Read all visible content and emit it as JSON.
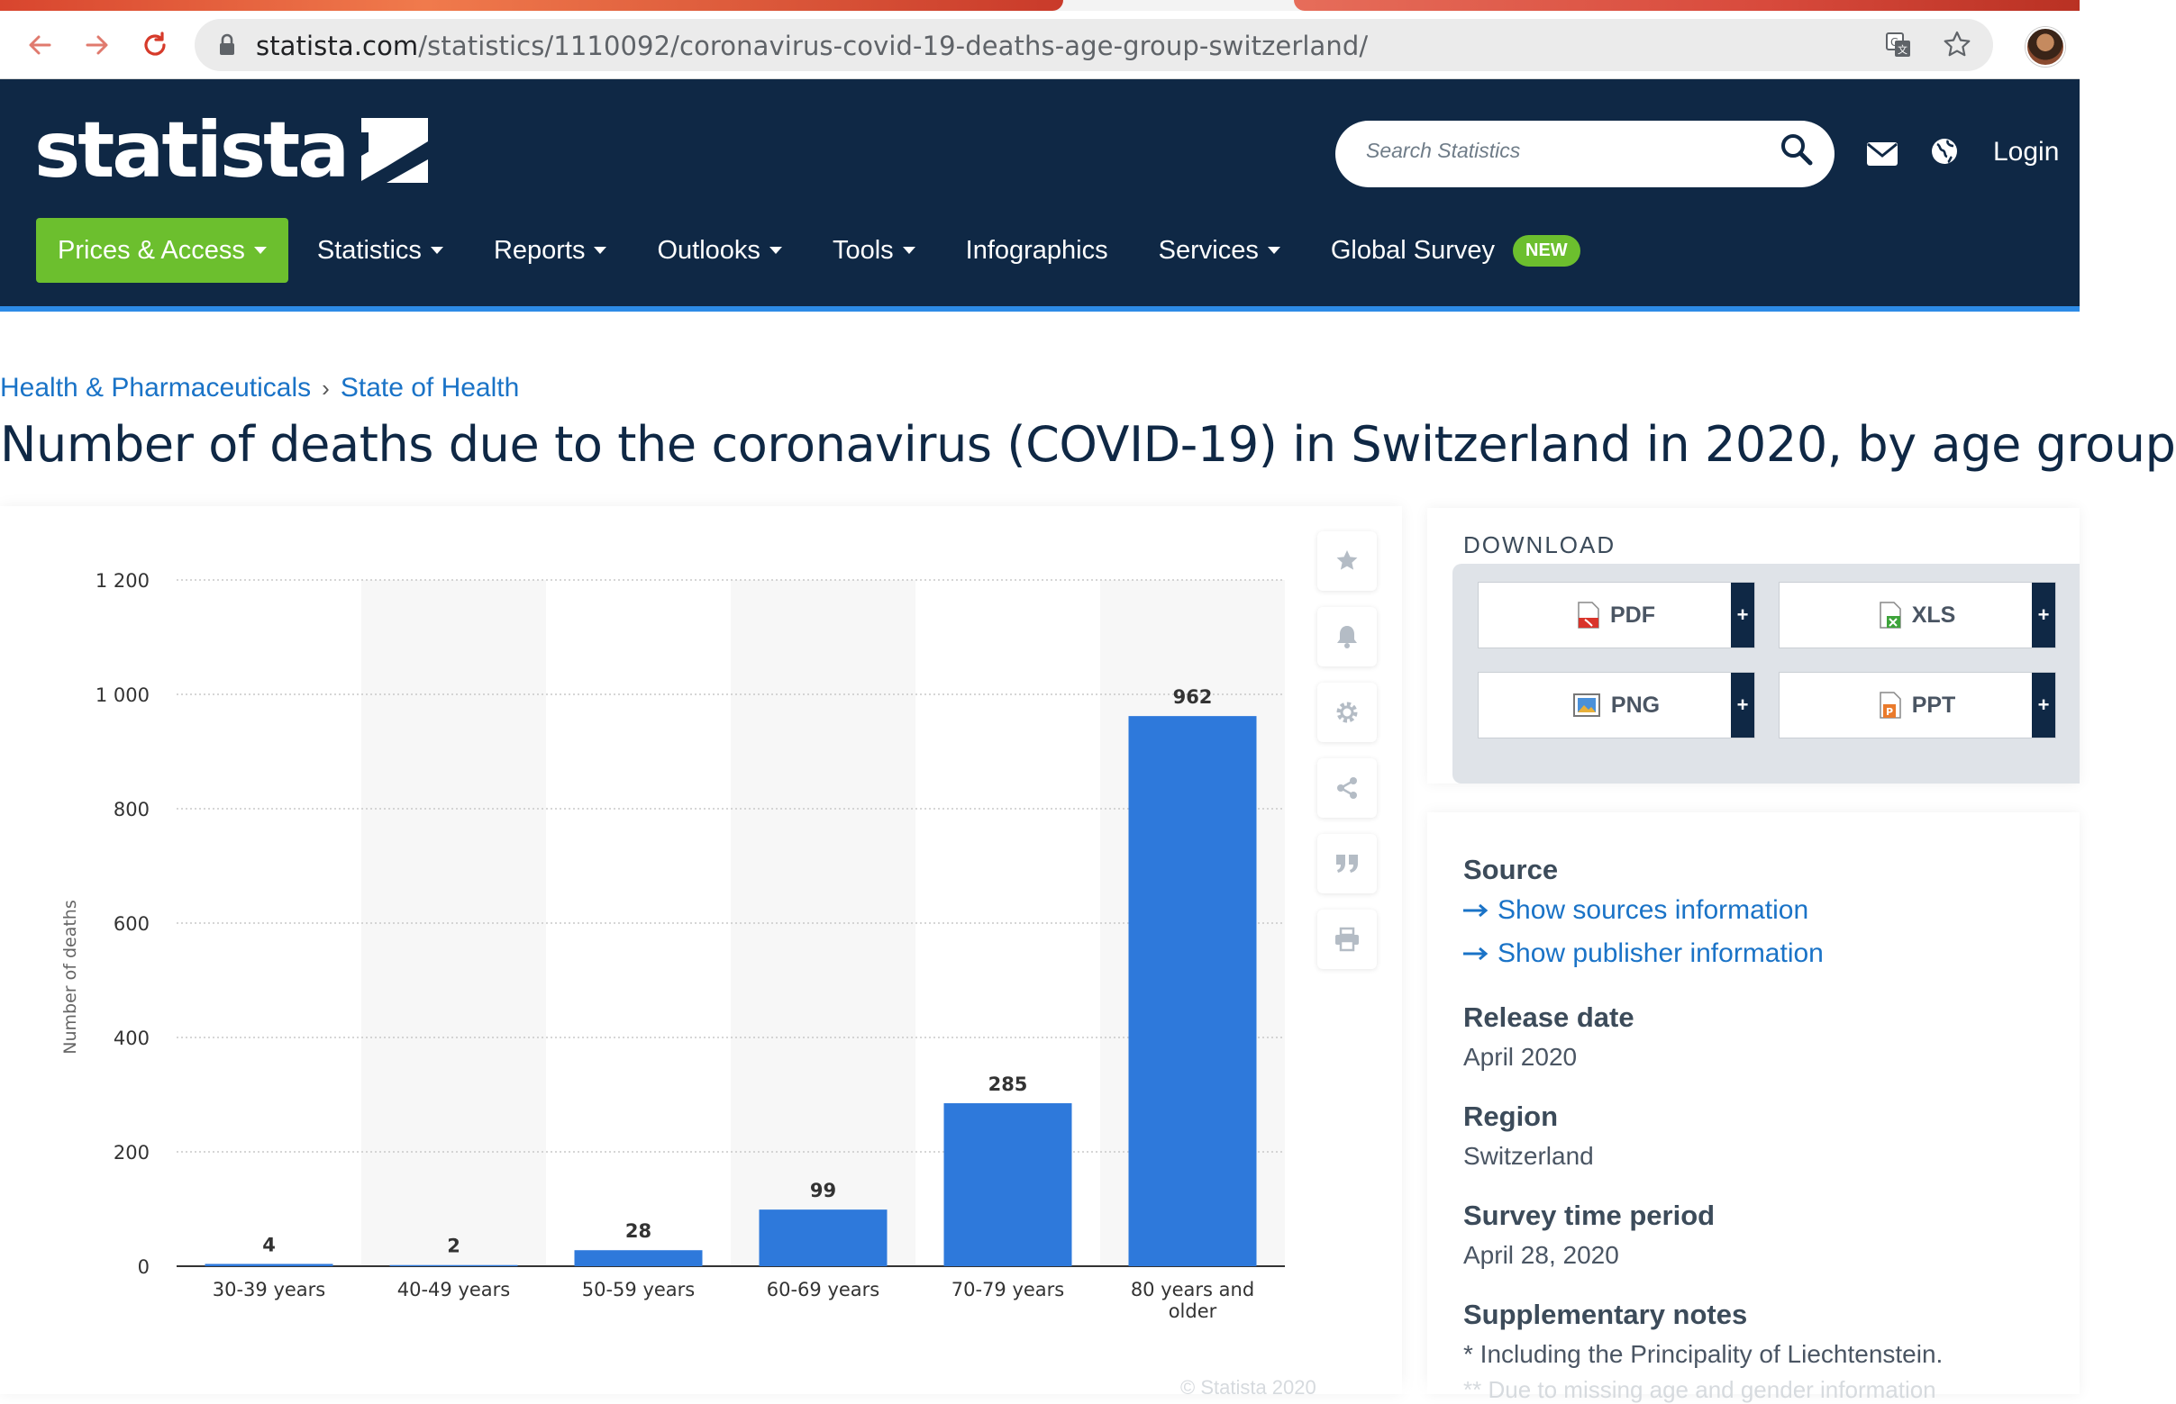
{
  "browser": {
    "url_host": "statista.com",
    "url_path": "/statistics/1110092/coronavirus-covid-19-deaths-age-group-switzerland/",
    "icons": [
      "back-icon",
      "forward-icon",
      "reload-icon",
      "lock-icon",
      "translate-icon",
      "bookmark-star-icon",
      "profile-avatar"
    ]
  },
  "header": {
    "logo_text": "statista",
    "search_placeholder": "Search Statistics",
    "login_label": "Login",
    "nav": [
      {
        "label": "Prices & Access",
        "caret": true
      },
      {
        "label": "Statistics",
        "caret": true
      },
      {
        "label": "Reports",
        "caret": true
      },
      {
        "label": "Outlooks",
        "caret": true
      },
      {
        "label": "Tools",
        "caret": true
      },
      {
        "label": "Infographics",
        "caret": false
      },
      {
        "label": "Services",
        "caret": true
      },
      {
        "label": "Global Survey",
        "caret": false,
        "badge": "NEW"
      }
    ],
    "colors": {
      "navy": "#0f2845",
      "green": "#6cbf2e",
      "accent": "#2d8be6"
    }
  },
  "breadcrumb": [
    "Health & Pharmaceuticals",
    "State of Health"
  ],
  "page_title": "Number of deaths due to the coronavirus (COVID-19) in Switzerland in 2020, by age group",
  "chart_data": {
    "type": "bar",
    "categories": [
      "30-39 years",
      "40-49 years",
      "50-59 years",
      "60-69 years",
      "70-79 years",
      "80 years and older"
    ],
    "values": [
      4,
      2,
      28,
      99,
      285,
      962
    ],
    "data_labels": [
      "4",
      "2",
      "28",
      "99",
      "285",
      "962"
    ],
    "ylabel": "Number of deaths",
    "ylim": [
      0,
      1200
    ],
    "yticks": [
      0,
      200,
      400,
      600,
      800,
      1000,
      1200
    ],
    "ytick_labels": [
      "0",
      "200",
      "400",
      "600",
      "800",
      "1 000",
      "1 200"
    ],
    "grid": true,
    "bar_color": "#2e79db"
  },
  "tools": [
    "star-icon",
    "bell-icon",
    "gear-icon",
    "share-icon",
    "quote-icon",
    "print-icon"
  ],
  "download": {
    "heading": "DOWNLOAD",
    "buttons": [
      {
        "label": "PDF",
        "icon": "pdf-file-icon"
      },
      {
        "label": "XLS",
        "icon": "xls-file-icon"
      },
      {
        "label": "PNG",
        "icon": "png-file-icon"
      },
      {
        "label": "PPT",
        "icon": "ppt-file-icon"
      }
    ],
    "plus": "+"
  },
  "info": {
    "source_label": "Source",
    "source_link": "Show sources information",
    "publisher_link": "Show publisher information",
    "release_label": "Release date",
    "release_value": "April 2020",
    "region_label": "Region",
    "region_value": "Switzerland",
    "survey_label": "Survey time period",
    "survey_value": "April 28, 2020",
    "notes_label": "Supplementary notes",
    "notes_value": "* Including the Principality of Liechtenstein.",
    "notes_value2": "** Due to missing age and gender information"
  },
  "footer": {
    "copyright": "© Statista 2020"
  }
}
